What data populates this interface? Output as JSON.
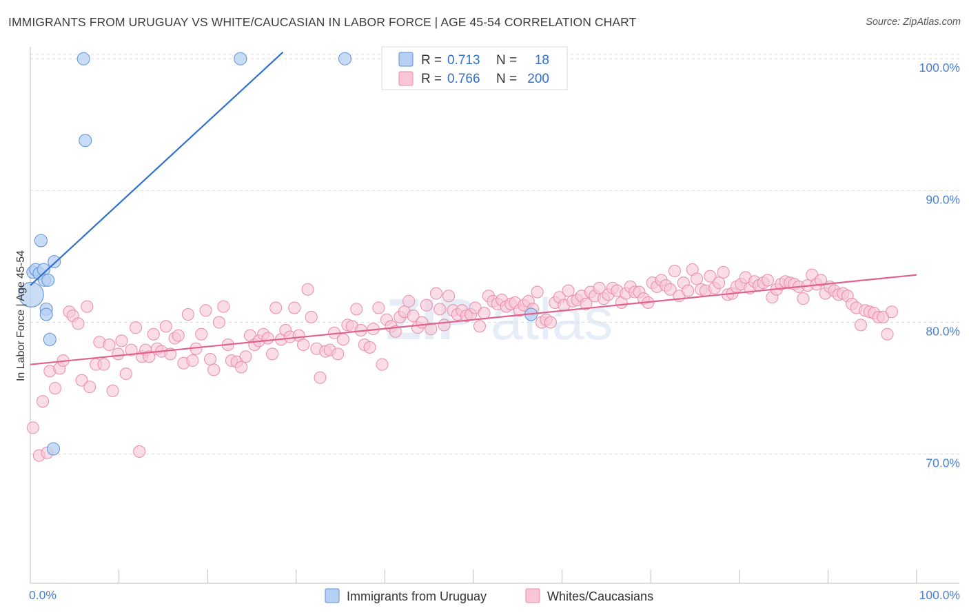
{
  "header": {
    "title": "IMMIGRANTS FROM URUGUAY VS WHITE/CAUCASIAN IN LABOR FORCE | AGE 45-54 CORRELATION CHART",
    "source": "Source: ZipAtlas.com"
  },
  "watermark": {
    "part1": "ZIP",
    "part2": "atlas"
  },
  "legend": {
    "rows": [
      {
        "r_label": "R =",
        "r_value": "0.713",
        "n_label": "N =",
        "n_value": "18",
        "color": "#a9c8f0"
      },
      {
        "r_label": "R =",
        "r_value": "0.766",
        "n_label": "N =",
        "n_value": "200",
        "color": "#f5b8cc"
      }
    ]
  },
  "chart_data": {
    "type": "scatter",
    "title": "IMMIGRANTS FROM URUGUAY VS WHITE/CAUCASIAN IN LABOR FORCE | AGE 45-54 CORRELATION CHART",
    "ylabel": "In Labor Force | Age 45-54",
    "xlabel": "",
    "x_tick_labels": [
      "0.0%",
      "100.0%"
    ],
    "y_tick_labels": [
      "100.0%",
      "90.0%",
      "80.0%",
      "70.0%"
    ],
    "y_ticks": [
      100,
      90,
      80,
      70
    ],
    "xlim": [
      0,
      100
    ],
    "ylim": [
      60.2,
      100.9
    ],
    "grid": true,
    "legend_position": "top-center",
    "series": [
      {
        "name": "Immigrants from Uruguay",
        "color": "#5b8fd8",
        "fill": "#b5d0f3",
        "trend": {
          "x0": 0,
          "y0": 82.8,
          "x1": 28.5,
          "y1": 100.5,
          "color": "#2f6fd0"
        },
        "points": [
          [
            0.1,
            82.1,
            18
          ],
          [
            0.3,
            83.8,
            9
          ],
          [
            0.6,
            84.0,
            9
          ],
          [
            1.0,
            83.7,
            9
          ],
          [
            1.2,
            86.2,
            9
          ],
          [
            1.5,
            84.0,
            9
          ],
          [
            1.6,
            83.2,
            9
          ],
          [
            2.0,
            83.2,
            9
          ],
          [
            1.8,
            81.0,
            9
          ],
          [
            1.8,
            80.6,
            9
          ],
          [
            2.2,
            78.7,
            9
          ],
          [
            2.7,
            84.6,
            9
          ],
          [
            2.6,
            70.4,
            9
          ],
          [
            6.0,
            100.0,
            9
          ],
          [
            6.2,
            93.8,
            9
          ],
          [
            23.7,
            100.0,
            9
          ],
          [
            35.5,
            100.0,
            9
          ],
          [
            56.5,
            80.6,
            9
          ]
        ]
      },
      {
        "name": "Whites/Caucasians",
        "color": "#e98aaa",
        "fill": "#f9c6d6",
        "trend": {
          "x0": 0,
          "y0": 76.8,
          "x1": 100,
          "y1": 83.6,
          "color": "#e0628c"
        },
        "points": [
          [
            0.3,
            72.0
          ],
          [
            1.0,
            69.9
          ],
          [
            1.4,
            74.0
          ],
          [
            1.9,
            70.1
          ],
          [
            2.2,
            76.3
          ],
          [
            2.8,
            75.0
          ],
          [
            3.3,
            76.5
          ],
          [
            3.7,
            77.1
          ],
          [
            4.4,
            80.8
          ],
          [
            4.8,
            80.5
          ],
          [
            5.4,
            79.9
          ],
          [
            5.8,
            75.6
          ],
          [
            6.4,
            81.2
          ],
          [
            6.7,
            75.1
          ],
          [
            7.4,
            76.8
          ],
          [
            7.8,
            78.5
          ],
          [
            8.3,
            76.8
          ],
          [
            8.9,
            78.3
          ],
          [
            9.3,
            74.8
          ],
          [
            9.9,
            77.6
          ],
          [
            10.3,
            78.6
          ],
          [
            10.8,
            76.1
          ],
          [
            11.4,
            77.9
          ],
          [
            11.9,
            79.6
          ],
          [
            12.3,
            70.2
          ],
          [
            12.6,
            77.4
          ],
          [
            13.0,
            77.9
          ],
          [
            13.4,
            77.4
          ],
          [
            13.9,
            79.1
          ],
          [
            14.3,
            78.0
          ],
          [
            14.8,
            77.8
          ],
          [
            15.3,
            79.7
          ],
          [
            15.8,
            77.6
          ],
          [
            16.3,
            78.8
          ],
          [
            16.7,
            79.0
          ],
          [
            17.3,
            76.9
          ],
          [
            17.8,
            80.6
          ],
          [
            18.3,
            77.1
          ],
          [
            18.7,
            78.0
          ],
          [
            19.3,
            79.1
          ],
          [
            19.8,
            80.9
          ],
          [
            20.3,
            77.2
          ],
          [
            20.7,
            76.4
          ],
          [
            21.3,
            80.0
          ],
          [
            21.8,
            81.2
          ],
          [
            22.3,
            78.3
          ],
          [
            22.7,
            77.1
          ],
          [
            23.3,
            77.0
          ],
          [
            23.8,
            76.6
          ],
          [
            24.3,
            77.4
          ],
          [
            24.8,
            79.0
          ],
          [
            25.3,
            78.3
          ],
          [
            25.8,
            78.6
          ],
          [
            26.3,
            79.1
          ],
          [
            26.8,
            78.8
          ],
          [
            27.3,
            77.6
          ],
          [
            27.7,
            81.1
          ],
          [
            28.3,
            78.7
          ],
          [
            28.8,
            79.4
          ],
          [
            29.3,
            78.9
          ],
          [
            29.8,
            81.1
          ],
          [
            30.3,
            79.0
          ],
          [
            30.8,
            78.3
          ],
          [
            31.3,
            82.5
          ],
          [
            31.7,
            80.4
          ],
          [
            32.3,
            78.0
          ],
          [
            32.7,
            75.8
          ],
          [
            33.3,
            77.8
          ],
          [
            33.8,
            77.9
          ],
          [
            34.3,
            79.2
          ],
          [
            34.7,
            77.6
          ],
          [
            35.3,
            78.7
          ],
          [
            35.8,
            79.8
          ],
          [
            36.3,
            79.7
          ],
          [
            36.8,
            81.0
          ],
          [
            37.3,
            79.4
          ],
          [
            37.7,
            78.3
          ],
          [
            38.3,
            78.1
          ],
          [
            38.7,
            79.5
          ],
          [
            39.3,
            81.1
          ],
          [
            39.7,
            76.8
          ],
          [
            40.2,
            80.2
          ],
          [
            40.7,
            79.7
          ],
          [
            41.2,
            79.3
          ],
          [
            41.7,
            80.4
          ],
          [
            42.2,
            80.8
          ],
          [
            42.7,
            81.6
          ],
          [
            43.2,
            80.5
          ],
          [
            43.7,
            79.6
          ],
          [
            44.2,
            80.0
          ],
          [
            44.7,
            81.3
          ],
          [
            45.2,
            79.5
          ],
          [
            45.8,
            82.2
          ],
          [
            46.2,
            81.0
          ],
          [
            46.7,
            79.8
          ],
          [
            47.2,
            82.0
          ],
          [
            47.7,
            80.9
          ],
          [
            48.2,
            80.6
          ],
          [
            48.7,
            80.9
          ],
          [
            49.2,
            80.5
          ],
          [
            49.7,
            80.6
          ],
          [
            50.2,
            81.1
          ],
          [
            50.7,
            79.7
          ],
          [
            51.2,
            80.7
          ],
          [
            51.7,
            82.0
          ],
          [
            52.2,
            81.6
          ],
          [
            52.7,
            81.4
          ],
          [
            53.2,
            81.7
          ],
          [
            53.7,
            81.2
          ],
          [
            54.2,
            81.4
          ],
          [
            54.7,
            81.5
          ],
          [
            55.2,
            80.9
          ],
          [
            55.7,
            81.3
          ],
          [
            56.2,
            81.6
          ],
          [
            56.7,
            81.0
          ],
          [
            57.2,
            82.3
          ],
          [
            57.7,
            80.0
          ],
          [
            58.2,
            80.2
          ],
          [
            58.7,
            80.0
          ],
          [
            59.2,
            81.5
          ],
          [
            59.7,
            81.9
          ],
          [
            60.2,
            81.3
          ],
          [
            60.7,
            82.4
          ],
          [
            61.2,
            81.6
          ],
          [
            61.7,
            81.7
          ],
          [
            62.2,
            82.0
          ],
          [
            62.7,
            81.4
          ],
          [
            63.2,
            82.3
          ],
          [
            63.7,
            82.0
          ],
          [
            64.2,
            82.6
          ],
          [
            64.7,
            81.8
          ],
          [
            65.2,
            82.1
          ],
          [
            65.7,
            82.6
          ],
          [
            66.2,
            82.4
          ],
          [
            66.7,
            81.5
          ],
          [
            67.2,
            82.2
          ],
          [
            67.7,
            82.7
          ],
          [
            68.2,
            82.3
          ],
          [
            68.7,
            82.3
          ],
          [
            69.2,
            81.8
          ],
          [
            69.7,
            81.5
          ],
          [
            70.2,
            83.0
          ],
          [
            70.7,
            82.7
          ],
          [
            71.2,
            83.2
          ],
          [
            71.7,
            82.8
          ],
          [
            72.2,
            82.5
          ],
          [
            72.7,
            83.9
          ],
          [
            73.2,
            82.0
          ],
          [
            73.7,
            83.0
          ],
          [
            74.2,
            82.4
          ],
          [
            74.7,
            84.0
          ],
          [
            75.2,
            83.3
          ],
          [
            75.7,
            82.5
          ],
          [
            76.2,
            82.4
          ],
          [
            76.7,
            83.5
          ],
          [
            77.2,
            82.6
          ],
          [
            77.7,
            83.0
          ],
          [
            78.2,
            83.8
          ],
          [
            78.7,
            82.1
          ],
          [
            79.2,
            82.2
          ],
          [
            79.7,
            82.7
          ],
          [
            80.2,
            82.9
          ],
          [
            80.7,
            83.4
          ],
          [
            81.2,
            82.6
          ],
          [
            81.7,
            83.1
          ],
          [
            82.2,
            82.8
          ],
          [
            82.7,
            83.0
          ],
          [
            83.2,
            83.2
          ],
          [
            83.7,
            81.9
          ],
          [
            84.2,
            82.5
          ],
          [
            84.7,
            82.9
          ],
          [
            85.2,
            83.1
          ],
          [
            85.7,
            83.0
          ],
          [
            86.2,
            82.9
          ],
          [
            86.7,
            82.7
          ],
          [
            87.2,
            81.8
          ],
          [
            87.7,
            82.8
          ],
          [
            88.2,
            83.6
          ],
          [
            88.7,
            82.9
          ],
          [
            89.2,
            83.2
          ],
          [
            89.7,
            82.2
          ],
          [
            90.2,
            82.7
          ],
          [
            90.7,
            82.4
          ],
          [
            91.2,
            82.1
          ],
          [
            91.7,
            82.2
          ],
          [
            92.2,
            82.0
          ],
          [
            92.7,
            81.4
          ],
          [
            93.2,
            81.1
          ],
          [
            93.7,
            79.8
          ],
          [
            94.2,
            80.9
          ],
          [
            94.7,
            80.8
          ],
          [
            95.2,
            80.7
          ],
          [
            95.7,
            80.4
          ],
          [
            96.2,
            80.4
          ],
          [
            96.7,
            79.1
          ],
          [
            97.2,
            80.8
          ]
        ]
      }
    ]
  },
  "bottom_legend": {
    "items": [
      {
        "label": "Immigrants from Uruguay",
        "color": "#b5d0f3",
        "stroke": "#5b8fd8"
      },
      {
        "label": "Whites/Caucasians",
        "color": "#f9c6d6",
        "stroke": "#e98aaa"
      }
    ]
  }
}
